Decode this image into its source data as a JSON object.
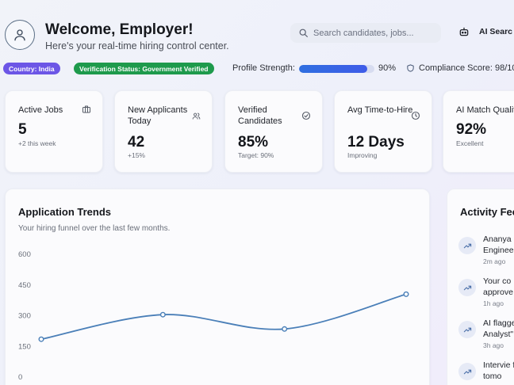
{
  "header": {
    "welcome": "Welcome, Employer!",
    "subtitle": "Here's your real-time hiring control center.",
    "search_placeholder": "Search candidates, jobs...",
    "ai_search_label": "AI Searc"
  },
  "status": {
    "country_badge": "Country: India",
    "verification_badge": "Verification Status: Government Verified",
    "profile_strength_label": "Profile Strength:",
    "profile_strength_value": "90%",
    "profile_strength_fraction": 0.9,
    "compliance_label": "Compliance Score: 98/10"
  },
  "cards": [
    {
      "title": "Active Jobs",
      "value": "5",
      "sub": "+2 this week",
      "icon": "briefcase-icon"
    },
    {
      "title": "New Applicants Today",
      "value": "42",
      "sub": "+15%",
      "icon": "users-icon"
    },
    {
      "title": "Verified Candidates",
      "value": "85%",
      "sub": "Target: 90%",
      "icon": "check-circle-icon"
    },
    {
      "title": "Avg Time-to-Hire",
      "value": "12 Days",
      "sub": "Improving",
      "icon": "clock-icon"
    },
    {
      "title": "AI Match Qualit",
      "value": "92%",
      "sub": "Excellent",
      "icon": ""
    }
  ],
  "trends": {
    "title": "Application Trends",
    "subtitle": "Your hiring funnel over the last few months."
  },
  "chart_data": {
    "type": "line",
    "title": "Application Trends",
    "ylim": [
      0,
      600
    ],
    "yticks": [
      "600",
      "450",
      "300",
      "150",
      "0"
    ],
    "series": [
      {
        "values": [
          185,
          305,
          235,
          405
        ]
      }
    ]
  },
  "activity": {
    "title": "Activity Fee",
    "items": [
      {
        "text": "Ananya Enginee",
        "time": "2m ago"
      },
      {
        "text": "Your co approve",
        "time": "1h ago"
      },
      {
        "text": "AI flagge Analyst\"",
        "time": "3h ago"
      },
      {
        "text": "Intervie for tomo",
        "time": ""
      }
    ]
  },
  "colors": {
    "accent": "#6c56e6",
    "success": "#1e9a4c",
    "progress": "#3566e3",
    "line": "#4a7fb8"
  }
}
